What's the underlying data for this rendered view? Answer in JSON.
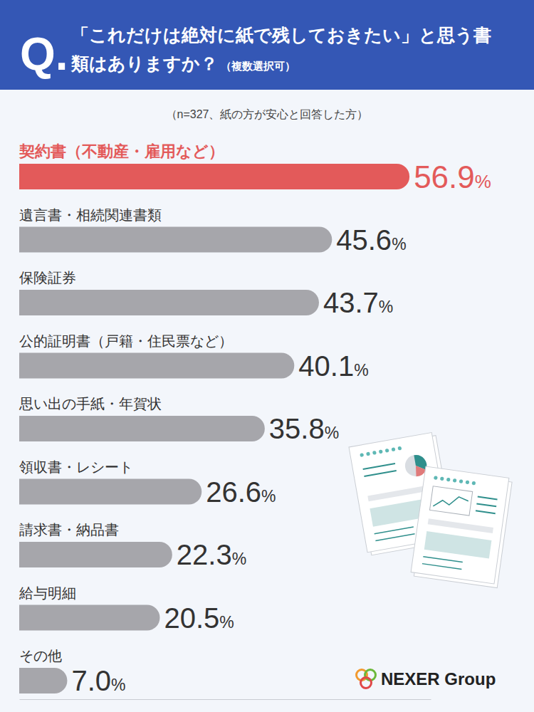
{
  "chart_data": {
    "type": "bar",
    "orientation": "horizontal",
    "q_mark": "Q.",
    "title": "「これだけは絶対に紙で残しておきたい」と思う書類はありますか？",
    "title_note": "（複数選択可）",
    "subtitle": "（n=327、紙の方が安心と回答した方）",
    "categories": [
      "契約書（不動産・雇用など）",
      "遺言書・相続関連書類",
      "保険証券",
      "公的証明書（戸籍・住民票など）",
      "思い出の手紙・年賀状",
      "領収書・レシート",
      "請求書・納品書",
      "給与明細",
      "その他"
    ],
    "values": [
      56.9,
      45.6,
      43.7,
      40.1,
      35.8,
      26.6,
      22.3,
      20.5,
      7.0
    ],
    "value_labels": [
      "56.9%",
      "45.6%",
      "43.7%",
      "40.1%",
      "35.8%",
      "26.6%",
      "22.3%",
      "20.5%",
      "7.0%"
    ],
    "colors": [
      "#e35a5a",
      "#a6a6ab",
      "#a6a6ab",
      "#a6a6ab",
      "#a6a6ab",
      "#a6a6ab",
      "#a6a6ab",
      "#a6a6ab",
      "#a6a6ab"
    ],
    "xlim": [
      0,
      60
    ],
    "data_labels": true,
    "tick_labels": false,
    "grid": false,
    "source": "NEXER Group"
  }
}
